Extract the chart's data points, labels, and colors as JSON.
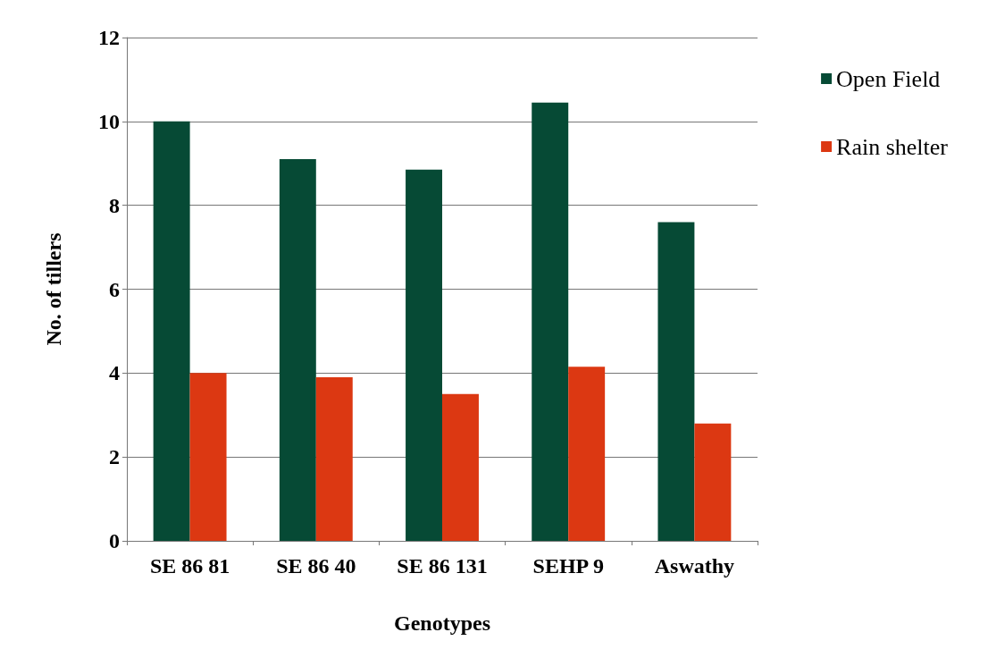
{
  "chart_data": {
    "type": "bar",
    "xlabel": "Genotypes",
    "ylabel": "No. of tillers",
    "categories": [
      "SE 86 81",
      "SE 86 40",
      "SE 86 131",
      "SEHP 9",
      "Aswathy"
    ],
    "series": [
      {
        "name": "Open Field",
        "color": "#064a35",
        "values": [
          10.0,
          9.1,
          8.85,
          10.45,
          7.6
        ]
      },
      {
        "name": "Rain shelter",
        "color": "#dc3812",
        "values": [
          4.0,
          3.9,
          3.5,
          4.15,
          2.8
        ]
      }
    ],
    "ylim": [
      0,
      12
    ],
    "yticks": [
      0,
      2,
      4,
      6,
      8,
      10,
      12
    ],
    "grid": "y",
    "legend": "right"
  }
}
